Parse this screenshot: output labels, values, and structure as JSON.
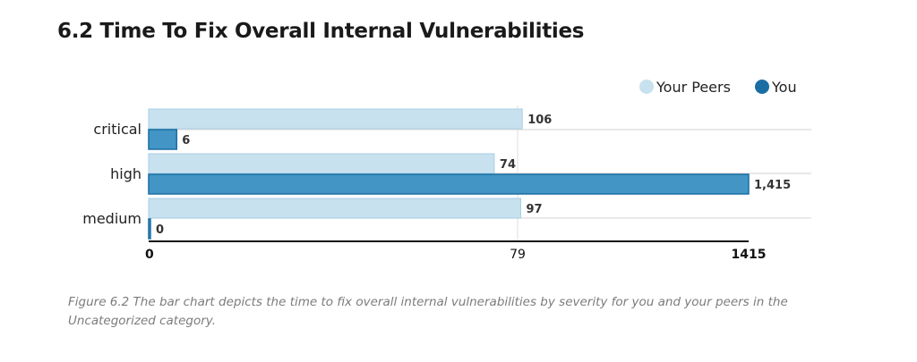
{
  "page": {
    "title": "6.2 Time To Fix Overall Internal Vulnerabilities",
    "caption": "Figure 6.2 The bar chart depicts the time to fix overall internal vulnerabilities by severity for you and your peers in the Uncategorized category."
  },
  "chart_data": {
    "type": "bar",
    "orientation": "horizontal",
    "categories": [
      "critical",
      "high",
      "medium"
    ],
    "series": [
      {
        "name": "Your Peers",
        "values": [
          106,
          74,
          97
        ],
        "labels": [
          "106",
          "74",
          "97"
        ],
        "color": "#c7e1ee",
        "stroke": "#a9cfe4"
      },
      {
        "name": "You",
        "values": [
          6,
          1415,
          0
        ],
        "labels": [
          "6",
          "1,415",
          "0"
        ],
        "color": "#4295c4",
        "stroke": "#1b6ea3"
      }
    ],
    "x_ticks": [
      0,
      79,
      1415
    ],
    "x_tick_labels": [
      "0",
      "79",
      "1415"
    ],
    "legend_position": "top-right",
    "grid": true
  }
}
